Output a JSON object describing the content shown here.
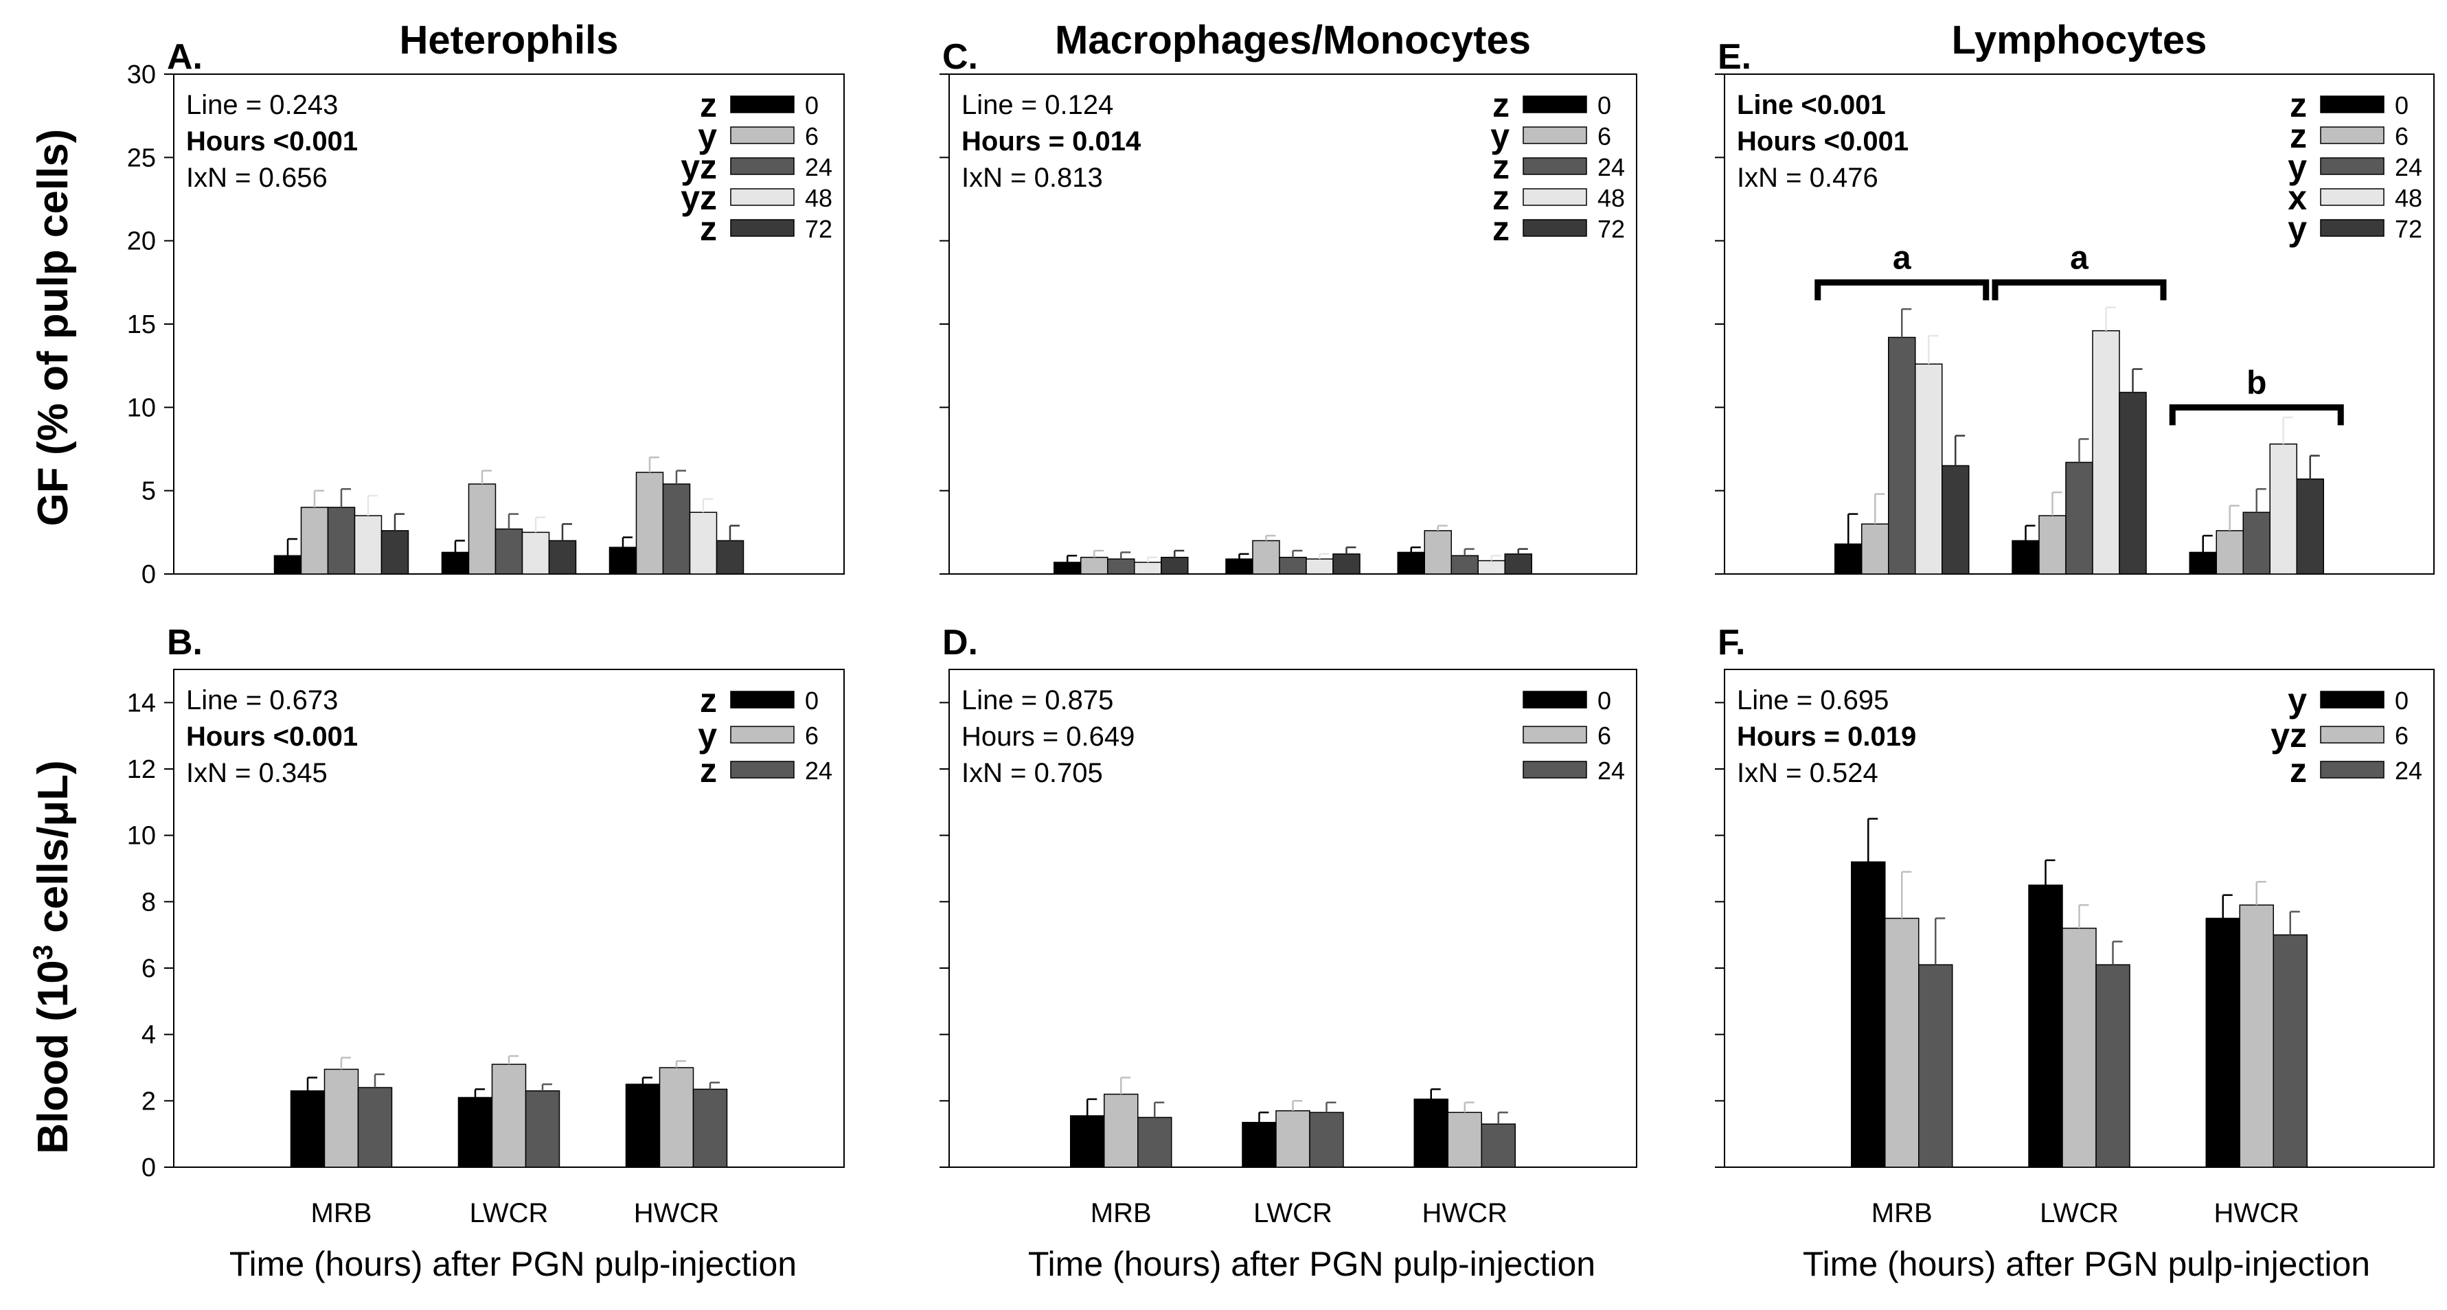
{
  "figure": {
    "row_labels": {
      "top": "GF (% of pulp cells)",
      "bottom_pre": "Blood (10",
      "bottom_sup": "3",
      "bottom_post": " cells/μL)"
    },
    "x_axis_title": "Time (hours) after PGN pulp-injection"
  },
  "colors": {
    "h0": "#000000",
    "h6": "#bfbfbf",
    "h24": "#595959",
    "h48": "#e6e6e6",
    "h72": "#3a3a3a",
    "bracket": "#000000"
  },
  "chart_data": [
    {
      "id": "A",
      "panel_label": "A.",
      "title": "Heterophils",
      "type": "bar",
      "categories": [
        "MRB",
        "LWCR",
        "HWCR"
      ],
      "hours": [
        "0",
        "6",
        "24",
        "48",
        "72"
      ],
      "legend_letters": [
        "z",
        "y",
        "yz",
        "yz",
        "z"
      ],
      "stats": [
        {
          "text": "Line = 0.243",
          "bold": false
        },
        {
          "text": "Hours <0.001",
          "bold": true
        },
        {
          "text": "IxN = 0.656",
          "bold": false
        }
      ],
      "ylim": [
        0,
        30
      ],
      "yticks": [
        0,
        5,
        10,
        15,
        20,
        25,
        30
      ],
      "show_tick_labels": true,
      "show_x_labels": false,
      "values": [
        [
          1.1,
          4.0,
          4.0,
          3.5,
          2.6
        ],
        [
          1.3,
          5.4,
          2.7,
          2.5,
          2.0
        ],
        [
          1.6,
          6.1,
          5.4,
          3.7,
          2.0
        ]
      ],
      "errors": [
        [
          1.0,
          1.0,
          1.1,
          1.2,
          1.0
        ],
        [
          0.7,
          0.8,
          0.9,
          0.9,
          1.0
        ],
        [
          0.6,
          0.9,
          0.8,
          0.8,
          0.9
        ]
      ],
      "brackets": []
    },
    {
      "id": "C",
      "panel_label": "C.",
      "title": "Macrophages/Monocytes",
      "type": "bar",
      "categories": [
        "MRB",
        "LWCR",
        "HWCR"
      ],
      "hours": [
        "0",
        "6",
        "24",
        "48",
        "72"
      ],
      "legend_letters": [
        "z",
        "y",
        "z",
        "z",
        "z"
      ],
      "stats": [
        {
          "text": "Line = 0.124",
          "bold": false
        },
        {
          "text": "Hours = 0.014",
          "bold": true
        },
        {
          "text": "IxN = 0.813",
          "bold": false
        }
      ],
      "ylim": [
        0,
        30
      ],
      "yticks": [
        0,
        5,
        10,
        15,
        20,
        25,
        30
      ],
      "show_tick_labels": false,
      "show_x_labels": false,
      "values": [
        [
          0.7,
          1.0,
          0.9,
          0.7,
          1.0
        ],
        [
          0.9,
          2.0,
          1.0,
          0.9,
          1.2
        ],
        [
          1.3,
          2.6,
          1.1,
          0.8,
          1.2
        ]
      ],
      "errors": [
        [
          0.4,
          0.4,
          0.4,
          0.3,
          0.4
        ],
        [
          0.3,
          0.3,
          0.4,
          0.3,
          0.4
        ],
        [
          0.3,
          0.3,
          0.4,
          0.3,
          0.3
        ]
      ],
      "brackets": []
    },
    {
      "id": "E",
      "panel_label": "E.",
      "title": "Lymphocytes",
      "type": "bar",
      "categories": [
        "MRB",
        "LWCR",
        "HWCR"
      ],
      "hours": [
        "0",
        "6",
        "24",
        "48",
        "72"
      ],
      "legend_letters": [
        "z",
        "z",
        "y",
        "x",
        "y"
      ],
      "stats": [
        {
          "text": "Line <0.001",
          "bold": true
        },
        {
          "text": "Hours <0.001",
          "bold": true
        },
        {
          "text": "IxN = 0.476",
          "bold": false
        }
      ],
      "ylim": [
        0,
        30
      ],
      "yticks": [
        0,
        5,
        10,
        15,
        20,
        25,
        30
      ],
      "show_tick_labels": false,
      "show_x_labels": false,
      "values": [
        [
          1.8,
          3.0,
          14.2,
          12.6,
          6.5
        ],
        [
          2.0,
          3.5,
          6.7,
          14.6,
          10.9
        ],
        [
          1.3,
          2.6,
          3.7,
          7.8,
          5.7
        ]
      ],
      "errors": [
        [
          1.8,
          1.8,
          1.7,
          1.7,
          1.8
        ],
        [
          0.9,
          1.4,
          1.4,
          1.4,
          1.4
        ],
        [
          1.0,
          1.5,
          1.4,
          1.6,
          1.4
        ]
      ],
      "brackets": [
        {
          "group": 0,
          "label": "a",
          "y": 17.5
        },
        {
          "group": 1,
          "label": "a",
          "y": 17.5
        },
        {
          "group": 2,
          "label": "b",
          "y": 10.0
        }
      ]
    },
    {
      "id": "B",
      "panel_label": "B.",
      "title": "",
      "type": "bar",
      "categories": [
        "MRB",
        "LWCR",
        "HWCR"
      ],
      "hours": [
        "0",
        "6",
        "24"
      ],
      "legend_letters": [
        "z",
        "y",
        "z"
      ],
      "stats": [
        {
          "text": "Line = 0.673",
          "bold": false
        },
        {
          "text": "Hours <0.001",
          "bold": true
        },
        {
          "text": "IxN = 0.345",
          "bold": false
        }
      ],
      "ylim": [
        0,
        15
      ],
      "yticks": [
        0,
        2,
        4,
        6,
        8,
        10,
        12,
        14
      ],
      "show_tick_labels": true,
      "show_x_labels": true,
      "values": [
        [
          2.3,
          2.95,
          2.4
        ],
        [
          2.1,
          3.1,
          2.3
        ],
        [
          2.5,
          3.0,
          2.35
        ]
      ],
      "errors": [
        [
          0.4,
          0.35,
          0.4
        ],
        [
          0.25,
          0.25,
          0.2
        ],
        [
          0.2,
          0.2,
          0.2
        ]
      ],
      "brackets": []
    },
    {
      "id": "D",
      "panel_label": "D.",
      "title": "",
      "type": "bar",
      "categories": [
        "MRB",
        "LWCR",
        "HWCR"
      ],
      "hours": [
        "0",
        "6",
        "24"
      ],
      "legend_letters": [
        "",
        "",
        ""
      ],
      "stats": [
        {
          "text": "Line = 0.875",
          "bold": false
        },
        {
          "text": "Hours = 0.649",
          "bold": false
        },
        {
          "text": "IxN = 0.705",
          "bold": false
        }
      ],
      "ylim": [
        0,
        15
      ],
      "yticks": [
        0,
        2,
        4,
        6,
        8,
        10,
        12,
        14
      ],
      "show_tick_labels": false,
      "show_x_labels": true,
      "values": [
        [
          1.55,
          2.2,
          1.5
        ],
        [
          1.35,
          1.7,
          1.65
        ],
        [
          2.05,
          1.65,
          1.3
        ]
      ],
      "errors": [
        [
          0.5,
          0.5,
          0.45
        ],
        [
          0.3,
          0.3,
          0.3
        ],
        [
          0.3,
          0.3,
          0.35
        ]
      ],
      "brackets": []
    },
    {
      "id": "F",
      "panel_label": "F.",
      "title": "",
      "type": "bar",
      "categories": [
        "MRB",
        "LWCR",
        "HWCR"
      ],
      "hours": [
        "0",
        "6",
        "24"
      ],
      "legend_letters": [
        "y",
        "yz",
        "z"
      ],
      "stats": [
        {
          "text": "Line = 0.695",
          "bold": false
        },
        {
          "text": "Hours = 0.019",
          "bold": true
        },
        {
          "text": "IxN = 0.524",
          "bold": false
        }
      ],
      "ylim": [
        0,
        15
      ],
      "yticks": [
        0,
        2,
        4,
        6,
        8,
        10,
        12,
        14
      ],
      "show_tick_labels": false,
      "show_x_labels": true,
      "values": [
        [
          9.2,
          7.5,
          6.1
        ],
        [
          8.5,
          7.2,
          6.1
        ],
        [
          7.5,
          7.9,
          7.0
        ]
      ],
      "errors": [
        [
          1.3,
          1.4,
          1.4
        ],
        [
          0.75,
          0.7,
          0.7
        ],
        [
          0.7,
          0.7,
          0.7
        ]
      ],
      "brackets": []
    }
  ]
}
